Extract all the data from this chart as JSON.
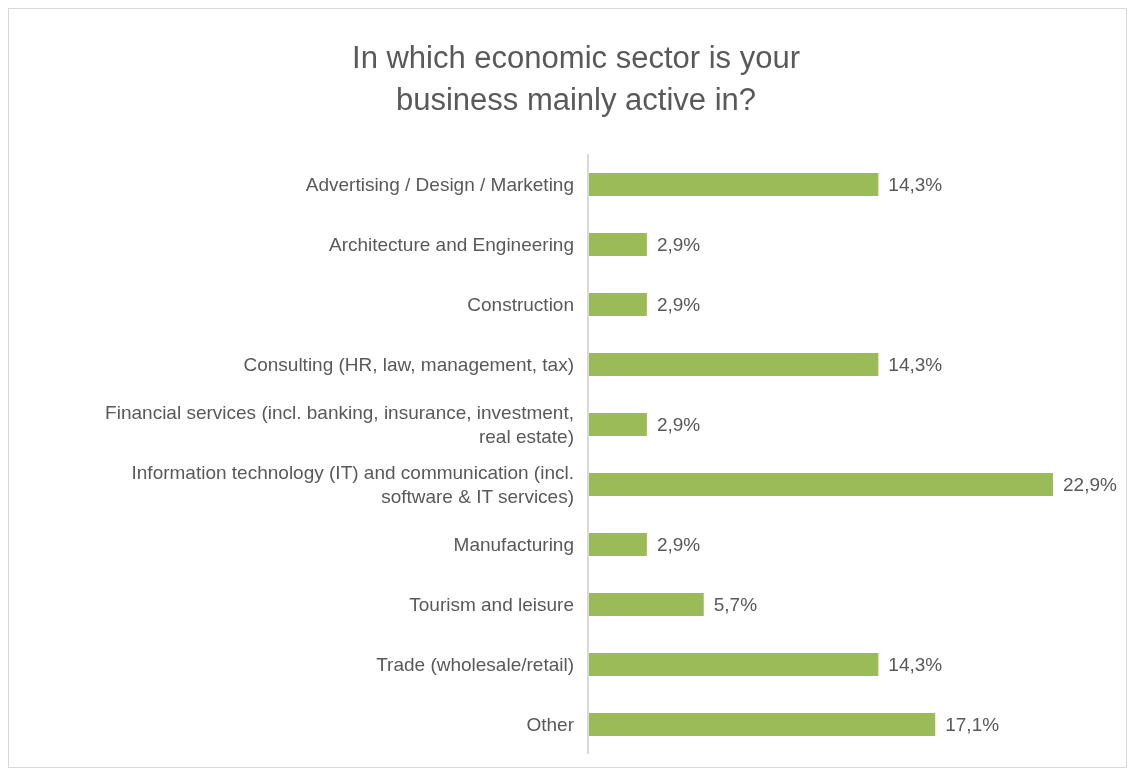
{
  "chart_data": {
    "type": "bar",
    "orientation": "horizontal",
    "title": "In which economic sector is your business mainly active in?",
    "categories": [
      "Advertising / Design / Marketing",
      "Architecture and Engineering",
      "Construction",
      "Consulting (HR, law, management, tax)",
      "Financial services (incl. banking, insurance, investment, real estate)",
      "Information technology (IT) and communication (incl. software & IT services)",
      "Manufacturing",
      "Tourism and leisure",
      "Trade (wholesale/retail)",
      "Other"
    ],
    "values": [
      14.3,
      2.9,
      2.9,
      14.3,
      2.9,
      22.9,
      2.9,
      5.7,
      14.3,
      17.1
    ],
    "value_labels": [
      "14,3%",
      "2,9%",
      "2,9%",
      "14,3%",
      "2,9%",
      "22,9%",
      "2,9%",
      "5,7%",
      "14,3%",
      "17,1%"
    ],
    "color": "#9bbb59",
    "grid": false,
    "legend": false
  }
}
